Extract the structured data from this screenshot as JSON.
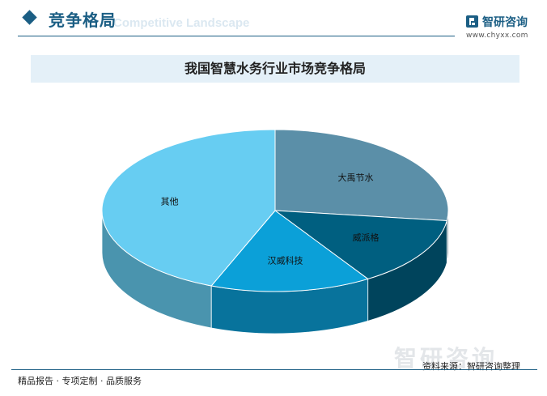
{
  "header": {
    "title": "竞争格局",
    "subtitle": "Competitive Landscape",
    "brand_name": "智研咨询",
    "brand_url": "www.chyxx.com"
  },
  "chart_data": {
    "type": "pie",
    "title": "我国智慧水务行业市场竞争格局",
    "slices": [
      {
        "label": "大禹节水",
        "value": 27,
        "color": "#5b8fa8"
      },
      {
        "label": "威派格",
        "value": 14,
        "color": "#005f80"
      },
      {
        "label": "汉威科技",
        "value": 15,
        "color": "#0ba0d8"
      },
      {
        "label": "其他",
        "value": 44,
        "color": "#67cdf2"
      }
    ],
    "start_angle_deg": -90,
    "direction": "clockwise",
    "style": "3d"
  },
  "watermark": "智研咨询",
  "footer": {
    "left": "精品报告 · 专项定制 · 品质服务",
    "source": "资料来源：智研咨询整理"
  }
}
